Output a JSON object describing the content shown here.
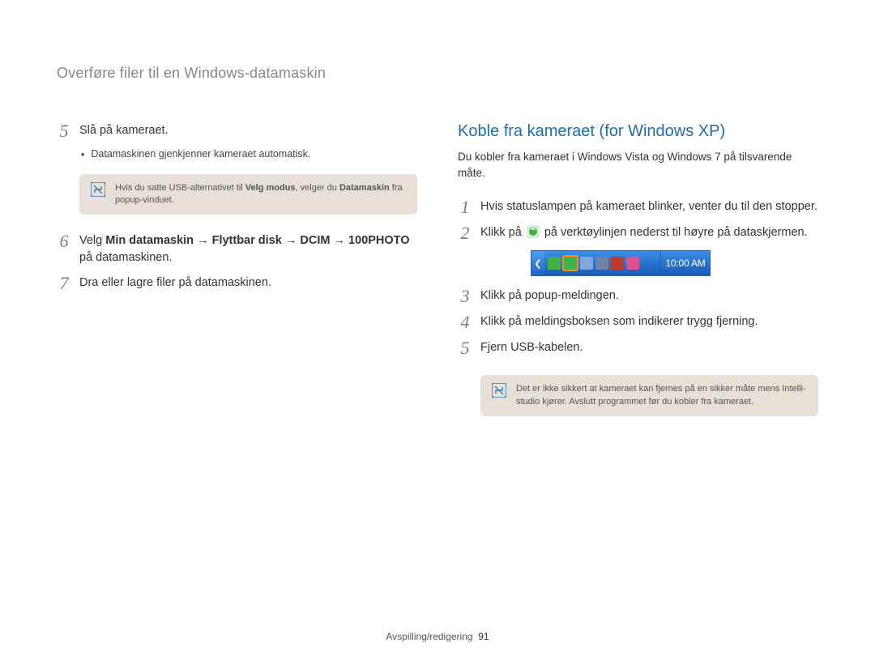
{
  "header": "Overføre filer til en Windows-datamaskin",
  "left": {
    "steps": [
      {
        "n": "5",
        "html": "Slå på kameraet."
      }
    ],
    "bullet": "Datamaskinen gjenkjenner kameraet automatisk.",
    "note": {
      "html": "Hvis du satte USB-alternativet til <b>Velg modus</b>, velger du <b>Datamaskin</b> fra popup-vinduet."
    },
    "steps2": [
      {
        "n": "6",
        "html": "Velg <b>Min datamaskin</b> <span class='arrow'>→</span> <b>Flyttbar disk</b> <span class='arrow'>→</span> <b>DCIM</b> <span class='arrow'>→</span> <b>100PHOTO</b> på datamaskinen."
      },
      {
        "n": "7",
        "html": "Dra eller lagre filer på datamaskinen."
      }
    ]
  },
  "right": {
    "title": "Koble fra kameraet (for Windows XP)",
    "intro": "Du kobler fra kameraet i Windows Vista og Windows 7 på tilsvarende måte.",
    "steps": [
      {
        "n": "1",
        "html": "Hvis statuslampen på kameraet blinker, venter du til den stopper."
      },
      {
        "n": "2",
        "html": "Klikk på __ICON__ på verktøylinjen nederst til høyre på dataskjermen."
      }
    ],
    "taskbar": {
      "clock": "10:00 AM",
      "icon_colors": [
        "#3fb24a",
        "#3fb24a",
        "#7ea9d8",
        "#6f82aa",
        "#c03a2b",
        "#e04f8f"
      ],
      "highlight_index": 1,
      "highlight_color": "#ff8c1a",
      "bg_gradient": [
        "#3a8de8",
        "#195bb5"
      ],
      "border": "#2b5fa0"
    },
    "steps2": [
      {
        "n": "3",
        "html": "Klikk på popup-meldingen."
      },
      {
        "n": "4",
        "html": "Klikk på meldingsboksen som indikerer trygg fjerning."
      },
      {
        "n": "5",
        "html": "Fjern USB-kabelen."
      }
    ],
    "note": {
      "html": "Det er ikke sikkert at kameraet kan fjernes på en sikker måte mens Intelli-studio kjører. Avslutt programmet før du kobler fra kameraet."
    }
  },
  "footer": {
    "section": "Avspilling/redigering",
    "page": "91"
  },
  "colors": {
    "title_blue": "#1c6db3",
    "note_bg": "#e6e0d6",
    "step_num": "#7d7d7d",
    "icon_green": "#3fb24a"
  }
}
